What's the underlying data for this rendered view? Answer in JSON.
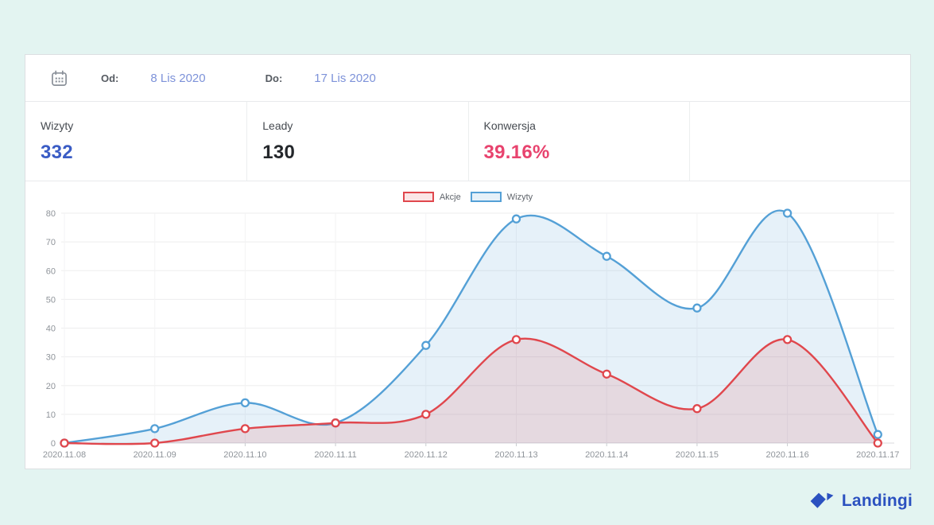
{
  "header": {
    "od_label": "Od:",
    "od_value": "8 Lis 2020",
    "do_label": "Do:",
    "do_value": "17 Lis 2020"
  },
  "stats": [
    {
      "label": "Wizyty",
      "value": "332",
      "color": "#3a5cc5"
    },
    {
      "label": "Leady",
      "value": "130",
      "color": "#24272b"
    },
    {
      "label": "Konwersja",
      "value": "39.16%",
      "color": "#e8436e"
    }
  ],
  "chart_data": {
    "type": "area",
    "x": [
      "2020.11.08",
      "2020.11.09",
      "2020.11.10",
      "2020.11.11",
      "2020.11.12",
      "2020.11.13",
      "2020.11.14",
      "2020.11.15",
      "2020.11.16",
      "2020.11.17"
    ],
    "series": [
      {
        "name": "Akcje",
        "values": [
          0,
          0,
          5,
          7,
          10,
          36,
          24,
          12,
          36,
          0
        ],
        "line_color": "#e0474d",
        "fill_color": "rgba(224,71,77,0.14)"
      },
      {
        "name": "Wizyty",
        "values": [
          0,
          5,
          14,
          7,
          34,
          78,
          65,
          47,
          80,
          3
        ],
        "line_color": "#54a0d6",
        "fill_color": "rgba(84,160,214,0.15)"
      }
    ],
    "title": "",
    "xlabel": "",
    "ylabel": "",
    "ylim": [
      0,
      80
    ],
    "ytick_step": 10,
    "grid": true,
    "legend_position": "top-center",
    "axis_text_color": "#8f949a"
  },
  "footer": {
    "brand": "Landingi",
    "brand_color": "#2b51c0"
  }
}
